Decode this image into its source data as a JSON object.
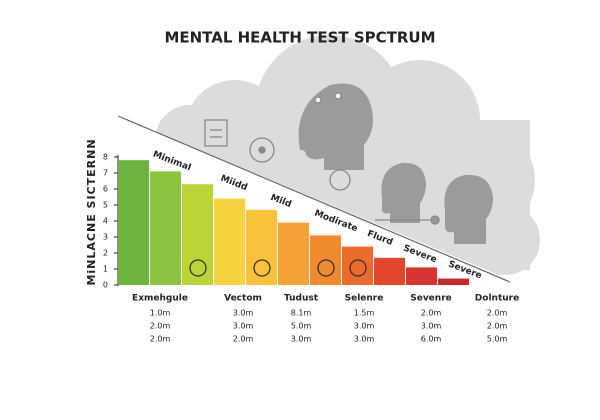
{
  "chart_data": {
    "type": "bar",
    "title": "MENTAL HEALTH TEST SPCTRUM",
    "y_label": "MiNLACNE  SICTERNN",
    "values": [
      7.8,
      7.1,
      6.3,
      5.4,
      4.7,
      3.9,
      3.1,
      2.4,
      1.7,
      1.1,
      0.4
    ],
    "colors": [
      "#6cb33f",
      "#8cc43f",
      "#bdd437",
      "#f5d33e",
      "#f8c23a",
      "#f4a236",
      "#ef8b2f",
      "#ea6b2b",
      "#e2462d",
      "#d83431",
      "#c8262c"
    ],
    "ylim": [
      0,
      8
    ],
    "yticks": [
      0,
      1,
      2,
      3,
      4,
      5,
      6,
      7,
      8
    ],
    "zone_labels": [
      "Minimal",
      "Miidd",
      "Mild",
      "Modirate",
      "Flurd",
      "Severe",
      "Severe"
    ],
    "table": [
      {
        "header": "Exmehgule",
        "cells": [
          "1.0m",
          "2.0m",
          "2.0m"
        ]
      },
      {
        "header": "Vectom",
        "cells": [
          "3.0m",
          "3.0m",
          "2.0m"
        ]
      },
      {
        "header": "Tudust",
        "cells": [
          "8.1m",
          "5.0m",
          "3.0m"
        ]
      },
      {
        "header": "Selenre",
        "cells": [
          "1.5m",
          "3.0m",
          "3.0m"
        ]
      },
      {
        "header": "Sevenre",
        "cells": [
          "2.0m",
          "3.0m",
          "6.0m"
        ]
      },
      {
        "header": "Dolnture",
        "cells": [
          "2.0m",
          "2.0m",
          "5.0m"
        ]
      }
    ]
  }
}
